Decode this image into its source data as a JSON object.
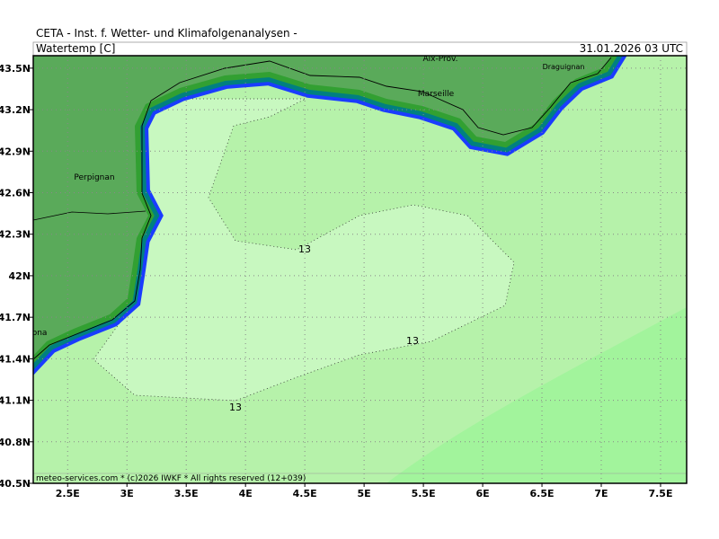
{
  "header": {
    "title": "CETA - Inst. f. Wetter- und Klimafolgenanalysen -",
    "field": "Watertemp [C]",
    "valid_time": "31.01.2026 03 UTC"
  },
  "map": {
    "xlim": [
      2.21,
      7.72
    ],
    "ylim": [
      40.5,
      43.59
    ],
    "lon_ticks": [
      {
        "value": 2.5,
        "label": "2.5E"
      },
      {
        "value": 3,
        "label": "3E"
      },
      {
        "value": 3.5,
        "label": "3.5E"
      },
      {
        "value": 4,
        "label": "4E"
      },
      {
        "value": 4.5,
        "label": "4.5E"
      },
      {
        "value": 5,
        "label": "5E"
      },
      {
        "value": 5.5,
        "label": "5.5E"
      },
      {
        "value": 6,
        "label": "6E"
      },
      {
        "value": 6.5,
        "label": "6.5E"
      },
      {
        "value": 7,
        "label": "7E"
      },
      {
        "value": 7.5,
        "label": "7.5E"
      }
    ],
    "lat_ticks": [
      {
        "value": 40.5,
        "label": "40.5N"
      },
      {
        "value": 40.8,
        "label": "40.8N"
      },
      {
        "value": 41.1,
        "label": "41.1N"
      },
      {
        "value": 41.4,
        "label": "41.4N"
      },
      {
        "value": 41.7,
        "label": "41.7N"
      },
      {
        "value": 42,
        "label": "42N"
      },
      {
        "value": 42.3,
        "label": "42.3N"
      },
      {
        "value": 42.6,
        "label": "42.6N"
      },
      {
        "value": 42.9,
        "label": "42.9N"
      },
      {
        "value": 43.2,
        "label": "43.2N"
      },
      {
        "value": 43.5,
        "label": "43.5N"
      }
    ],
    "cities": [
      "Aix-Prov.",
      "Draguignan",
      "Marseille",
      "Perpignan",
      "Barcelona"
    ],
    "contour_labels": [
      "13",
      "13",
      "13"
    ]
  },
  "footer": "meteo-services.com * (c)2026 IWKF * All rights reserved (12+039)"
}
